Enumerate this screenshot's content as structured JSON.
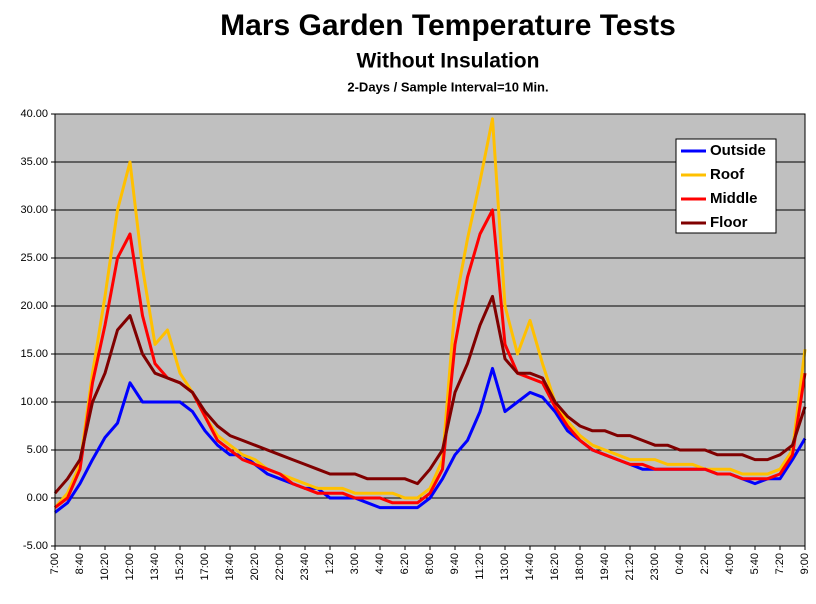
{
  "chart_data": {
    "type": "line",
    "title": "Mars Garden Temperature Tests",
    "subtitle": "Without Insulation",
    "subtitle2": "2-Days / Sample Interval=10 Min.",
    "categories": [
      "7:00",
      null,
      "8:40",
      null,
      "10:20",
      null,
      "12:00",
      null,
      "13:40",
      null,
      "15:20",
      null,
      "17:00",
      null,
      "18:40",
      null,
      "20:20",
      null,
      "22:00",
      null,
      "23:40",
      null,
      "1:20",
      null,
      "3:00",
      null,
      "4:40",
      null,
      "6:20",
      null,
      "8:00",
      null,
      "9:40",
      null,
      "11:20",
      null,
      "13:00",
      null,
      "14:40",
      null,
      "16:20",
      null,
      "18:00",
      null,
      "19:40",
      null,
      "21:20",
      null,
      "23:00",
      null,
      "0:40",
      null,
      "2:20",
      null,
      "4:00",
      null,
      "5:40",
      null,
      "7:20",
      null,
      "9:00"
    ],
    "series": [
      {
        "name": "Outside",
        "color": "#0000ff",
        "values": [
          -1.5,
          -0.5,
          1.5,
          4,
          6.3,
          7.8,
          12,
          10,
          10,
          10,
          10,
          9,
          7,
          5.5,
          4.5,
          4.5,
          3.5,
          2.5,
          2,
          1.5,
          1,
          1,
          0,
          0,
          0,
          -0.5,
          -1,
          -1,
          -1,
          -1,
          0,
          2,
          4.5,
          6,
          9,
          13.5,
          9,
          10,
          11,
          10.5,
          9,
          7,
          6,
          5,
          4.5,
          4,
          3.5,
          3,
          3,
          3,
          3,
          3,
          3,
          2.5,
          2.5,
          2,
          1.5,
          2,
          2,
          4,
          6.2
        ]
      },
      {
        "name": "Roof",
        "color": "#ffc000",
        "values": [
          -1,
          0.5,
          3.5,
          13,
          21,
          30,
          35,
          24,
          16,
          17.5,
          13,
          11,
          8.5,
          6.5,
          5.5,
          4.5,
          4,
          3,
          2.5,
          2,
          1.5,
          1,
          1,
          1,
          0.5,
          0.5,
          0.5,
          0.5,
          0,
          0,
          1,
          4,
          20,
          27,
          33,
          39.5,
          20,
          15,
          18.5,
          14,
          10,
          8,
          6.5,
          5.5,
          5,
          4.5,
          4,
          4,
          4,
          3.5,
          3.5,
          3.5,
          3,
          3,
          3,
          2.5,
          2.5,
          2.5,
          3,
          5,
          15.5
        ]
      },
      {
        "name": "Middle",
        "color": "#ff0000",
        "values": [
          -1,
          0,
          3,
          12,
          18,
          25,
          27.5,
          19,
          14,
          12.5,
          12,
          11,
          8.5,
          6,
          5,
          4,
          3.5,
          3,
          2.5,
          1.5,
          1,
          0.5,
          0.5,
          0.5,
          0,
          0,
          0,
          -0.5,
          -0.5,
          -0.5,
          0.5,
          3,
          16,
          23,
          27.5,
          30,
          16,
          13,
          12.5,
          12,
          9.5,
          7.5,
          6,
          5,
          4.5,
          4,
          3.5,
          3.5,
          3,
          3,
          3,
          3,
          3,
          2.5,
          2.5,
          2,
          2,
          2,
          2.5,
          4.5,
          13
        ]
      },
      {
        "name": "Floor",
        "color": "#800000",
        "values": [
          0.5,
          2,
          4,
          10,
          13,
          17.5,
          19,
          15,
          13,
          12.5,
          12,
          11,
          9,
          7.5,
          6.5,
          6,
          5.5,
          5,
          4.5,
          4,
          3.5,
          3,
          2.5,
          2.5,
          2.5,
          2,
          2,
          2,
          2,
          1.5,
          3,
          5,
          11,
          14,
          18,
          21,
          14.5,
          13,
          13,
          12.5,
          10,
          8.5,
          7.5,
          7,
          7,
          6.5,
          6.5,
          6,
          5.5,
          5.5,
          5,
          5,
          5,
          4.5,
          4.5,
          4.5,
          4,
          4,
          4.5,
          5.5,
          9.5
        ]
      }
    ],
    "ylim": [
      -5,
      40
    ],
    "yticks": [
      {
        "value": -5,
        "label": "-5.00"
      },
      {
        "value": 0,
        "label": "0.00"
      },
      {
        "value": 5,
        "label": "5.00"
      },
      {
        "value": 10,
        "label": "10.00"
      },
      {
        "value": 15,
        "label": "15.00"
      },
      {
        "value": 20,
        "label": "20.00"
      },
      {
        "value": 25,
        "label": "25.00"
      },
      {
        "value": 30,
        "label": "30.00"
      },
      {
        "value": 35,
        "label": "35.00"
      },
      {
        "value": 40,
        "label": "40.00"
      }
    ],
    "grid": true,
    "legend": "upper right"
  }
}
